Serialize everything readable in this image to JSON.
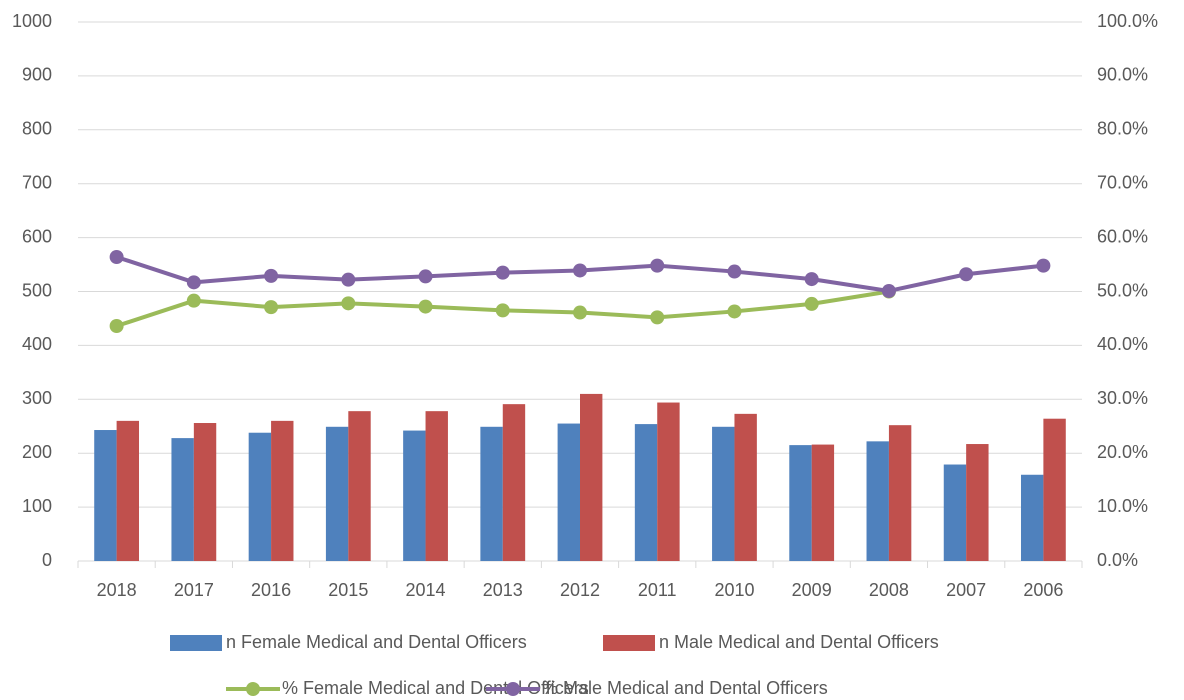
{
  "chart_data": {
    "type": "bar_line",
    "categories": [
      "2018",
      "2017",
      "2016",
      "2015",
      "2014",
      "2013",
      "2012",
      "2011",
      "2010",
      "2009",
      "2008",
      "2007",
      "2006"
    ],
    "series": [
      {
        "name": "n Female Medical and Dental Officers",
        "type": "bar",
        "color": "#4f81bd",
        "values": [
          243,
          228,
          238,
          249,
          242,
          249,
          255,
          254,
          249,
          215,
          222,
          179,
          160
        ]
      },
      {
        "name": "n Male Medical and Dental Officers",
        "type": "bar",
        "color": "#c0504d",
        "values": [
          260,
          256,
          260,
          278,
          278,
          291,
          310,
          294,
          273,
          216,
          252,
          217,
          264
        ]
      },
      {
        "name": "% Female Medical and Dental Officers",
        "type": "line",
        "axis": "y2",
        "color": "#9bbb59",
        "values": [
          43.6,
          48.3,
          47.1,
          47.8,
          47.2,
          46.5,
          46.1,
          45.2,
          46.3,
          47.7,
          50.0,
          null,
          null
        ]
      },
      {
        "name": "% Male Medical and Dental Officers",
        "type": "line",
        "axis": "y2",
        "color": "#8064a2",
        "values": [
          56.4,
          51.7,
          52.9,
          52.2,
          52.8,
          53.5,
          53.9,
          54.8,
          53.7,
          52.3,
          50.1,
          53.2,
          54.8
        ]
      }
    ],
    "ylim": [
      0,
      1000
    ],
    "yticks": [
      0,
      100,
      200,
      300,
      400,
      500,
      600,
      700,
      800,
      900,
      1000
    ],
    "y2lim": [
      0,
      100
    ],
    "y2ticks": [
      {
        "value": 0,
        "label": "0.0%"
      },
      {
        "value": 10,
        "label": "10.0%"
      },
      {
        "value": 20,
        "label": "20.0%"
      },
      {
        "value": 30,
        "label": "30.0%"
      },
      {
        "value": 40,
        "label": "40.0%"
      },
      {
        "value": 50,
        "label": "50.0%"
      },
      {
        "value": 60,
        "label": "60.0%"
      },
      {
        "value": 70,
        "label": "70.0%"
      },
      {
        "value": 80,
        "label": "80.0%"
      },
      {
        "value": 90,
        "label": "90.0%"
      },
      {
        "value": 100,
        "label": "100.0%"
      }
    ],
    "grid": true,
    "legend": "bottom"
  }
}
